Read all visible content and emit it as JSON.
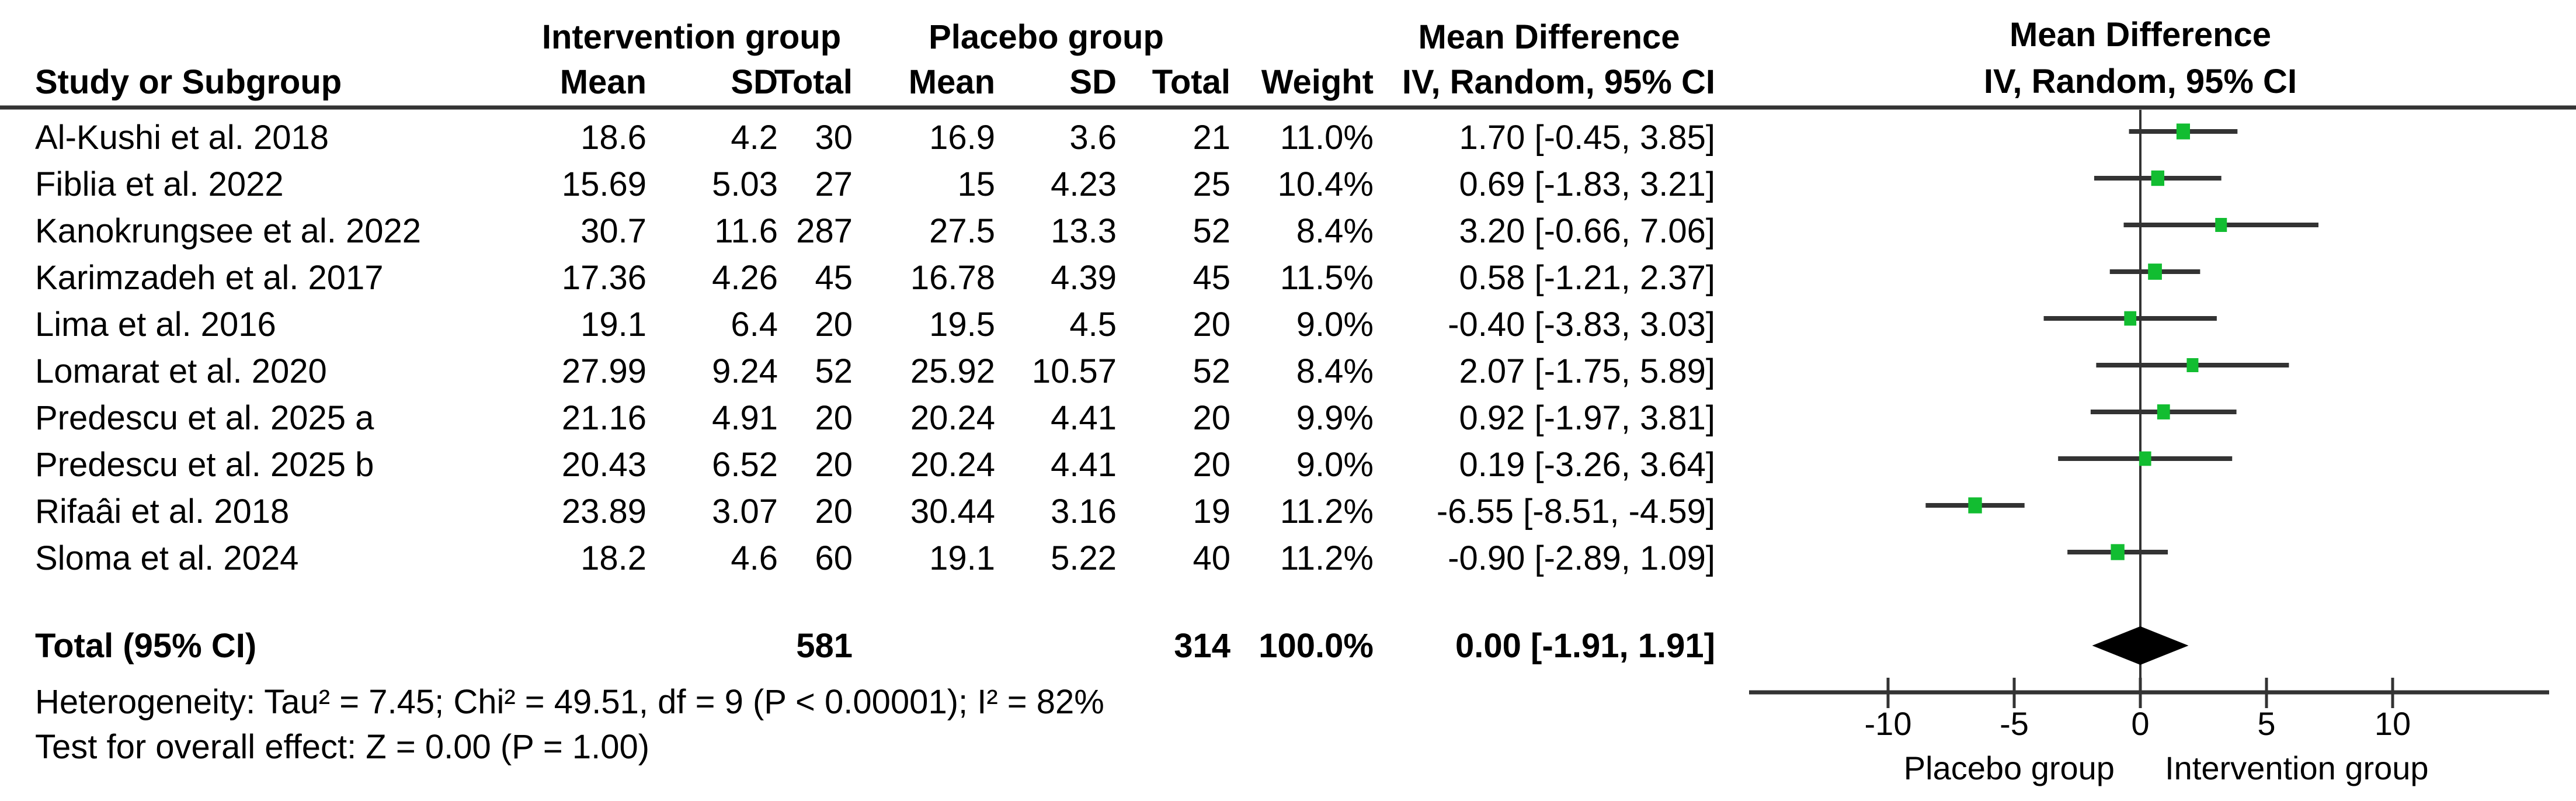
{
  "colors": {
    "line": "#333333",
    "marker_green": "#12bd31",
    "diamond": "#000000",
    "text": "#000000"
  },
  "table": {
    "study_col": "Study or Subgroup",
    "group1": "Intervention group",
    "group2": "Placebo group",
    "mean": "Mean",
    "sd": "SD",
    "total": "Total",
    "weight": "Weight",
    "md": "Mean Difference",
    "method_ci": "IV, Random, 95% CI"
  },
  "footnotes": {
    "heterogeneity": "Heterogeneity: Tau² = 7.45; Chi² = 49.51, df = 9 (P < 0.00001); I² = 82%",
    "overall_effect": "Test for overall effect: Z = 0.00 (P = 1.00)"
  },
  "chart_data": {
    "type": "forest",
    "effect_measure": "Mean Difference",
    "model": "IV, Random, 95% CI",
    "x_ticks": [
      -10,
      -5,
      0,
      5,
      10
    ],
    "x_axis_left_label": "Placebo group",
    "x_axis_right_label": "Intervention group",
    "x_range_shown": [
      -15.5,
      16
    ],
    "studies": [
      {
        "name": "Al-Kushi et al. 2018",
        "i_mean": "18.6",
        "i_sd": "4.2",
        "i_total": "30",
        "p_mean": "16.9",
        "p_sd": "3.6",
        "p_total": "21",
        "weight": "11.0%",
        "w": 11.0,
        "ci_text": "1.70 [-0.45, 3.85]",
        "md": 1.7,
        "lo": -0.45,
        "hi": 3.85
      },
      {
        "name": "Fiblia et al. 2022",
        "i_mean": "15.69",
        "i_sd": "5.03",
        "i_total": "27",
        "p_mean": "15",
        "p_sd": "4.23",
        "p_total": "25",
        "weight": "10.4%",
        "w": 10.4,
        "ci_text": "0.69 [-1.83, 3.21]",
        "md": 0.69,
        "lo": -1.83,
        "hi": 3.21
      },
      {
        "name": "Kanokrungsee et al. 2022",
        "i_mean": "30.7",
        "i_sd": "11.6",
        "i_total": "287",
        "p_mean": "27.5",
        "p_sd": "13.3",
        "p_total": "52",
        "weight": "8.4%",
        "w": 8.4,
        "ci_text": "3.20 [-0.66, 7.06]",
        "md": 3.2,
        "lo": -0.66,
        "hi": 7.06
      },
      {
        "name": "Karimzadeh et al. 2017",
        "i_mean": "17.36",
        "i_sd": "4.26",
        "i_total": "45",
        "p_mean": "16.78",
        "p_sd": "4.39",
        "p_total": "45",
        "weight": "11.5%",
        "w": 11.5,
        "ci_text": "0.58 [-1.21, 2.37]",
        "md": 0.58,
        "lo": -1.21,
        "hi": 2.37
      },
      {
        "name": "Lima et al. 2016",
        "i_mean": "19.1",
        "i_sd": "6.4",
        "i_total": "20",
        "p_mean": "19.5",
        "p_sd": "4.5",
        "p_total": "20",
        "weight": "9.0%",
        "w": 9.0,
        "ci_text": "-0.40 [-3.83, 3.03]",
        "md": -0.4,
        "lo": -3.83,
        "hi": 3.03
      },
      {
        "name": "Lomarat et al. 2020",
        "i_mean": "27.99",
        "i_sd": "9.24",
        "i_total": "52",
        "p_mean": "25.92",
        "p_sd": "10.57",
        "p_total": "52",
        "weight": "8.4%",
        "w": 8.4,
        "ci_text": "2.07 [-1.75, 5.89]",
        "md": 2.07,
        "lo": -1.75,
        "hi": 5.89
      },
      {
        "name": "Predescu et al. 2025 a",
        "i_mean": "21.16",
        "i_sd": "4.91",
        "i_total": "20",
        "p_mean": "20.24",
        "p_sd": "4.41",
        "p_total": "20",
        "weight": "9.9%",
        "w": 9.9,
        "ci_text": "0.92 [-1.97, 3.81]",
        "md": 0.92,
        "lo": -1.97,
        "hi": 3.81
      },
      {
        "name": "Predescu et al. 2025 b",
        "i_mean": "20.43",
        "i_sd": "6.52",
        "i_total": "20",
        "p_mean": "20.24",
        "p_sd": "4.41",
        "p_total": "20",
        "weight": "9.0%",
        "w": 9.0,
        "ci_text": "0.19 [-3.26, 3.64]",
        "md": 0.19,
        "lo": -3.26,
        "hi": 3.64
      },
      {
        "name": "Rifaâi et al. 2018",
        "i_mean": "23.89",
        "i_sd": "3.07",
        "i_total": "20",
        "p_mean": "30.44",
        "p_sd": "3.16",
        "p_total": "19",
        "weight": "11.2%",
        "w": 11.2,
        "ci_text": "-6.55 [-8.51, -4.59]",
        "md": -6.55,
        "lo": -8.51,
        "hi": -4.59
      },
      {
        "name": "Sloma et al. 2024",
        "i_mean": "18.2",
        "i_sd": "4.6",
        "i_total": "60",
        "p_mean": "19.1",
        "p_sd": "5.22",
        "p_total": "40",
        "weight": "11.2%",
        "w": 11.2,
        "ci_text": "-0.90 [-2.89, 1.09]",
        "md": -0.9,
        "lo": -2.89,
        "hi": 1.09
      }
    ],
    "total": {
      "label": "Total (95% CI)",
      "i_total": "581",
      "p_total": "314",
      "weight": "100.0%",
      "ci_text": "0.00 [-1.91, 1.91]",
      "md": 0.0,
      "lo": -1.91,
      "hi": 1.91
    }
  }
}
